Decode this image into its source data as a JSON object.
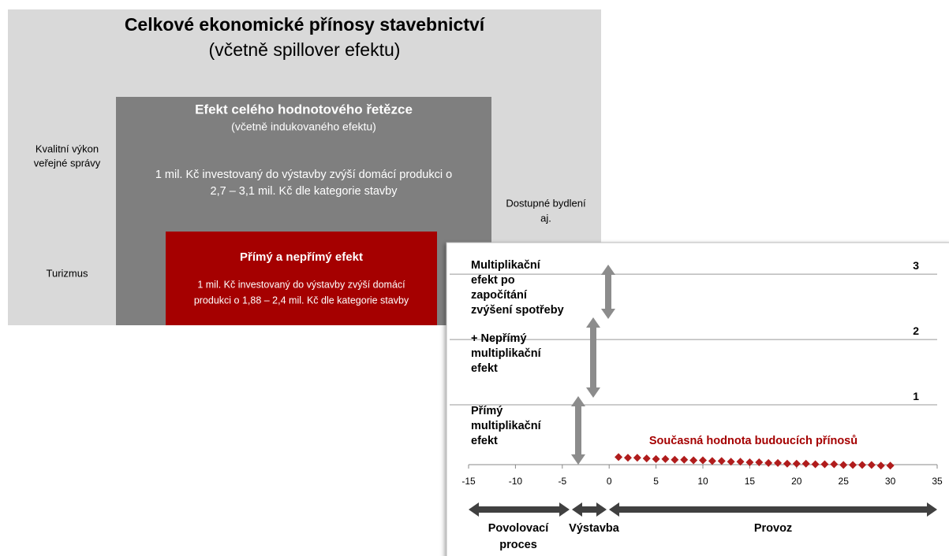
{
  "diagram": {
    "outer": {
      "title": "Celkové ekonomické přínosy stavebnictví",
      "subtitle": "(včetně spillover efektu)",
      "left_top": [
        "Kvalitní výkon",
        "veřejné správy"
      ],
      "left_bottom": "Turizmus",
      "right": [
        "Dostupné bydlení",
        "aj."
      ]
    },
    "middle": {
      "title": "Efekt celého hodnotového řetězce",
      "subtitle": "(včetně indukovaného efektu)",
      "text": [
        "1 mil. Kč investovaný do výstavby zvýší domácí produkci o",
        "2,7 – 3,1 mil. Kč dle kategorie stavby"
      ]
    },
    "inner": {
      "title": "Přímý a nepřímý efekt",
      "text": [
        "1 mil. Kč investovaný do výstavby zvýší domácí",
        "produkci o 1,88 – 2,4 mil. Kč dle kategorie stavby"
      ]
    }
  },
  "chart_data": {
    "type": "scatter",
    "annotations": [
      [
        "Multiplikační",
        "efekt po",
        "započítání",
        "zvýšení spotřeby"
      ],
      [
        "+ Nepřímý",
        "multiplikační",
        "efekt"
      ],
      [
        "Přímý",
        "multiplikační",
        "efekt"
      ]
    ],
    "series_label": "Současná hodnota budoucích přínosů",
    "phases": [
      [
        "Povolovací",
        "proces"
      ],
      [
        "Výstavba"
      ],
      [
        "Provoz"
      ]
    ],
    "xlim": [
      -15,
      35
    ],
    "xticks": [
      -15,
      -10,
      -5,
      0,
      5,
      10,
      15,
      20,
      25,
      30,
      35
    ],
    "ylim": [
      0,
      3.4
    ],
    "yticks": [
      1,
      2,
      3
    ],
    "grid": true,
    "series": [
      {
        "name": "Současná hodnota budoucích přínosů",
        "color": "#b01c1c",
        "x": [
          1,
          2,
          3,
          4,
          5,
          6,
          7,
          8,
          9,
          10,
          11,
          12,
          13,
          14,
          15,
          16,
          17,
          18,
          19,
          20,
          21,
          22,
          23,
          24,
          25,
          26,
          27,
          28,
          29,
          30
        ],
        "values": [
          0.2,
          0.19,
          0.19,
          0.18,
          0.17,
          0.17,
          0.16,
          0.16,
          0.15,
          0.15,
          0.14,
          0.14,
          0.13,
          0.13,
          0.12,
          0.12,
          0.11,
          0.11,
          0.1,
          0.1,
          0.1,
          0.09,
          0.09,
          0.09,
          0.08,
          0.08,
          0.08,
          0.08,
          0.07,
          0.07
        ]
      }
    ]
  }
}
